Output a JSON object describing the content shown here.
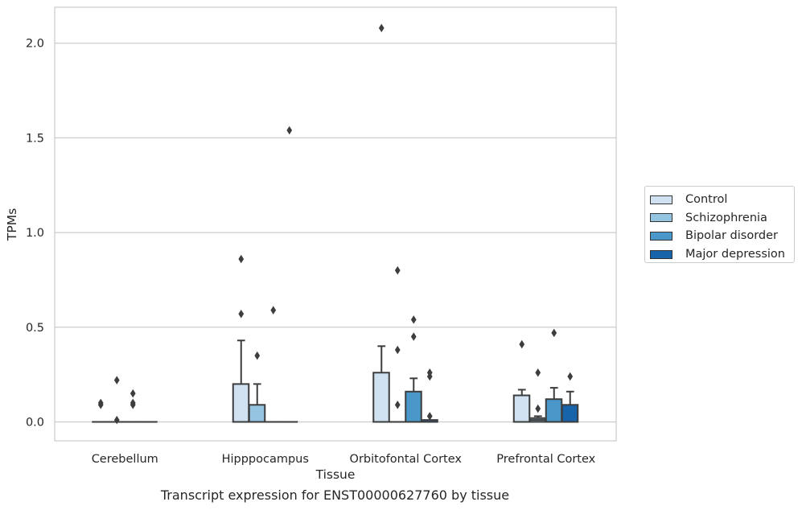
{
  "chart_data": {
    "type": "box",
    "xlabel": "Tissue",
    "ylabel": "TPMs",
    "caption": "Transcript expression for ENST00000627760 by tissue",
    "ylim": [
      -0.1,
      2.19
    ],
    "yticks": [
      0.0,
      0.5,
      1.0,
      1.5,
      2.0
    ],
    "ytick_labels": [
      "0.0",
      "0.5",
      "1.0",
      "1.5",
      "2.0"
    ],
    "grid": "horizontal",
    "legend_position": "outside-right",
    "categories": [
      "Cerebellum",
      "Hipppocampus",
      "Orbitofontal Cortex",
      "Prefrontal Cortex"
    ],
    "series": [
      {
        "name": "Control",
        "color": "#d0e1f2",
        "boxes": [
          {
            "q1": 0,
            "median": 0,
            "q3": 0,
            "whisker_low": 0,
            "whisker_high": 0,
            "outliers": [
              0.09,
              0.1
            ]
          },
          {
            "q1": 0,
            "median": 0,
            "q3": 0.2,
            "whisker_low": 0,
            "whisker_high": 0.43,
            "outliers": [
              0.57,
              0.86
            ]
          },
          {
            "q1": 0,
            "median": 0,
            "q3": 0.26,
            "whisker_low": 0,
            "whisker_high": 0.4,
            "outliers": [
              2.08
            ]
          },
          {
            "q1": 0,
            "median": 0,
            "q3": 0.14,
            "whisker_low": 0,
            "whisker_high": 0.17,
            "outliers": [
              0.41
            ]
          }
        ]
      },
      {
        "name": "Schizophrenia",
        "color": "#94c4df",
        "boxes": [
          {
            "q1": 0,
            "median": 0,
            "q3": 0,
            "whisker_low": 0,
            "whisker_high": 0,
            "outliers": [
              0.01,
              0.22
            ]
          },
          {
            "q1": 0,
            "median": 0,
            "q3": 0.09,
            "whisker_low": 0,
            "whisker_high": 0.2,
            "outliers": [
              0.35
            ]
          },
          {
            "q1": 0,
            "median": 0,
            "q3": 0,
            "whisker_low": 0,
            "whisker_high": 0,
            "outliers": [
              0.09,
              0.38,
              0.8
            ]
          },
          {
            "q1": 0,
            "median": 0.01,
            "q3": 0.02,
            "whisker_low": 0,
            "whisker_high": 0.03,
            "outliers": [
              0.07,
              0.26
            ]
          }
        ]
      },
      {
        "name": "Bipolar disorder",
        "color": "#4a98c9",
        "boxes": [
          {
            "q1": 0,
            "median": 0,
            "q3": 0,
            "whisker_low": 0,
            "whisker_high": 0,
            "outliers": [
              0.09,
              0.1,
              0.15
            ]
          },
          {
            "q1": 0,
            "median": 0,
            "q3": 0,
            "whisker_low": 0,
            "whisker_high": 0,
            "outliers": [
              0.59
            ]
          },
          {
            "q1": 0,
            "median": 0,
            "q3": 0.16,
            "whisker_low": 0,
            "whisker_high": 0.23,
            "outliers": [
              0.45,
              0.54
            ]
          },
          {
            "q1": 0,
            "median": 0,
            "q3": 0.12,
            "whisker_low": 0,
            "whisker_high": 0.18,
            "outliers": [
              0.47
            ]
          }
        ]
      },
      {
        "name": "Major depression",
        "color": "#1764ab",
        "boxes": [
          {
            "q1": 0,
            "median": 0,
            "q3": 0,
            "whisker_low": 0,
            "whisker_high": 0,
            "outliers": []
          },
          {
            "q1": 0,
            "median": 0,
            "q3": 0,
            "whisker_low": 0,
            "whisker_high": 0,
            "outliers": [
              1.54
            ]
          },
          {
            "q1": 0,
            "median": 0,
            "q3": 0.01,
            "whisker_low": 0,
            "whisker_high": 0.01,
            "outliers": [
              0.03,
              0.24,
              0.26
            ]
          },
          {
            "q1": 0,
            "median": 0,
            "q3": 0.09,
            "whisker_low": 0,
            "whisker_high": 0.16,
            "outliers": [
              0.24
            ]
          }
        ]
      }
    ]
  }
}
